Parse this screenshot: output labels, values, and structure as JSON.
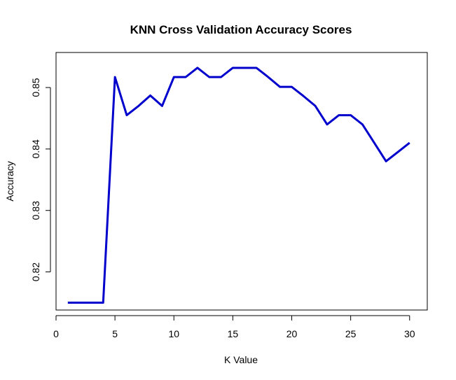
{
  "chart_data": {
    "type": "line",
    "title": "KNN Cross Validation Accuracy Scores",
    "xlabel": "K Value",
    "ylabel": "Accuracy",
    "xlim": [
      0,
      31.5
    ],
    "ylim": [
      0.8138,
      0.8557
    ],
    "xticks": [
      0,
      5,
      10,
      15,
      20,
      25,
      30
    ],
    "yticks": [
      0.82,
      0.83,
      0.84,
      0.85
    ],
    "xtick_labels": [
      "0",
      "5",
      "10",
      "15",
      "20",
      "25",
      "30"
    ],
    "ytick_labels": [
      "0.82",
      "0.83",
      "0.84",
      "0.85"
    ],
    "grid": false,
    "line_color": "#0000cd",
    "x": [
      1,
      2,
      3,
      4,
      5,
      6,
      7,
      8,
      9,
      10,
      11,
      12,
      13,
      14,
      15,
      16,
      17,
      18,
      19,
      20,
      21,
      22,
      23,
      24,
      25,
      26,
      27,
      28,
      29,
      30
    ],
    "y": [
      0.815,
      0.815,
      0.815,
      0.815,
      0.8517,
      0.8455,
      0.847,
      0.8487,
      0.847,
      0.8517,
      0.8517,
      0.8532,
      0.8517,
      0.8517,
      0.8532,
      0.8532,
      0.8532,
      0.8517,
      0.8501,
      0.8501,
      0.8486,
      0.847,
      0.844,
      0.8455,
      0.8455,
      0.844,
      0.841,
      0.838,
      0.8395,
      0.841
    ]
  }
}
